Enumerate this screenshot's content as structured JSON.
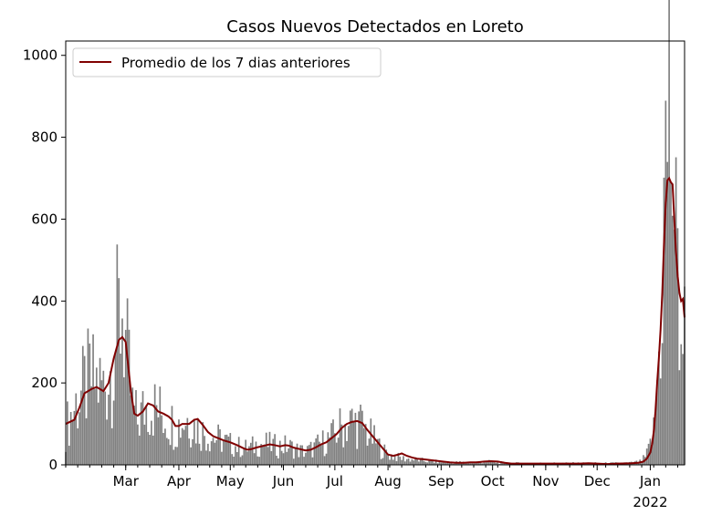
{
  "chart_data": {
    "type": "bar",
    "title": "Casos Nuevos Detectados en Loreto",
    "xlabel": "",
    "ylabel": "",
    "ylim": [
      0,
      1035
    ],
    "yticks": [
      0,
      200,
      400,
      600,
      800,
      1000
    ],
    "x_day_range": [
      0,
      361
    ],
    "xticks": [
      {
        "label": "Mar",
        "sub": "",
        "day": 35
      },
      {
        "label": "Apr",
        "sub": "",
        "day": 66
      },
      {
        "label": "May",
        "sub": "",
        "day": 96
      },
      {
        "label": "Jun",
        "sub": "",
        "day": 127
      },
      {
        "label": "Jul",
        "sub": "",
        "day": 157
      },
      {
        "label": "Aug",
        "sub": "",
        "day": 188
      },
      {
        "label": "Sep",
        "sub": "",
        "day": 219
      },
      {
        "label": "Oct",
        "sub": "",
        "day": 249
      },
      {
        "label": "Nov",
        "sub": "",
        "day": 280
      },
      {
        "label": "Dec",
        "sub": "",
        "day": 310
      },
      {
        "label": "Jan",
        "sub": "2022",
        "day": 341
      }
    ],
    "bar_color": "#808080",
    "line_color": "#800000",
    "legend": {
      "position": "top-left",
      "entries": [
        "Promedio de los 7 dias anteriores"
      ]
    },
    "bar_anchors": [
      [
        0,
        90
      ],
      [
        3,
        120
      ],
      [
        6,
        150
      ],
      [
        10,
        180
      ],
      [
        14,
        210
      ],
      [
        18,
        200
      ],
      [
        22,
        190
      ],
      [
        26,
        230
      ],
      [
        30,
        330
      ],
      [
        33,
        400
      ],
      [
        36,
        250
      ],
      [
        39,
        140
      ],
      [
        42,
        105
      ],
      [
        45,
        130
      ],
      [
        48,
        150
      ],
      [
        52,
        140
      ],
      [
        56,
        125
      ],
      [
        60,
        110
      ],
      [
        64,
        95
      ],
      [
        67,
        100
      ],
      [
        70,
        115
      ],
      [
        73,
        110
      ],
      [
        76,
        95
      ],
      [
        80,
        80
      ],
      [
        84,
        70
      ],
      [
        88,
        65
      ],
      [
        92,
        58
      ],
      [
        96,
        50
      ],
      [
        100,
        45
      ],
      [
        104,
        40
      ],
      [
        108,
        42
      ],
      [
        112,
        50
      ],
      [
        116,
        52
      ],
      [
        120,
        48
      ],
      [
        124,
        45
      ],
      [
        128,
        46
      ],
      [
        132,
        42
      ],
      [
        136,
        35
      ],
      [
        140,
        32
      ],
      [
        144,
        40
      ],
      [
        148,
        50
      ],
      [
        152,
        60
      ],
      [
        156,
        70
      ],
      [
        160,
        90
      ],
      [
        164,
        100
      ],
      [
        168,
        105
      ],
      [
        172,
        100
      ],
      [
        176,
        80
      ],
      [
        180,
        60
      ],
      [
        184,
        40
      ],
      [
        188,
        25
      ],
      [
        192,
        20
      ],
      [
        196,
        16
      ],
      [
        200,
        14
      ],
      [
        205,
        12
      ],
      [
        210,
        10
      ],
      [
        215,
        8
      ],
      [
        220,
        7
      ],
      [
        225,
        6
      ],
      [
        230,
        6
      ],
      [
        235,
        6
      ],
      [
        240,
        7
      ],
      [
        245,
        8
      ],
      [
        250,
        7
      ],
      [
        255,
        5
      ],
      [
        260,
        4
      ],
      [
        270,
        4
      ],
      [
        280,
        4
      ],
      [
        290,
        4
      ],
      [
        300,
        4
      ],
      [
        310,
        4
      ],
      [
        320,
        4
      ],
      [
        330,
        5
      ],
      [
        335,
        8
      ],
      [
        338,
        18
      ],
      [
        340,
        35
      ],
      [
        343,
        80
      ],
      [
        346,
        260
      ],
      [
        348,
        450
      ],
      [
        350,
        720
      ],
      [
        352,
        900
      ],
      [
        354,
        750
      ],
      [
        356,
        500
      ],
      [
        358,
        380
      ],
      [
        360,
        320
      ],
      [
        361,
        300
      ]
    ],
    "line_anchors": [
      [
        0,
        100
      ],
      [
        5,
        110
      ],
      [
        8,
        140
      ],
      [
        11,
        175
      ],
      [
        15,
        185
      ],
      [
        18,
        190
      ],
      [
        22,
        180
      ],
      [
        25,
        200
      ],
      [
        28,
        260
      ],
      [
        31,
        305
      ],
      [
        33,
        312
      ],
      [
        35,
        300
      ],
      [
        38,
        180
      ],
      [
        40,
        125
      ],
      [
        42,
        120
      ],
      [
        45,
        130
      ],
      [
        48,
        150
      ],
      [
        51,
        145
      ],
      [
        54,
        130
      ],
      [
        57,
        125
      ],
      [
        60,
        118
      ],
      [
        62,
        110
      ],
      [
        64,
        95
      ],
      [
        66,
        95
      ],
      [
        68,
        100
      ],
      [
        72,
        100
      ],
      [
        75,
        110
      ],
      [
        77,
        112
      ],
      [
        80,
        97
      ],
      [
        83,
        80
      ],
      [
        86,
        70
      ],
      [
        89,
        65
      ],
      [
        92,
        60
      ],
      [
        96,
        55
      ],
      [
        100,
        48
      ],
      [
        104,
        40
      ],
      [
        106,
        37
      ],
      [
        108,
        38
      ],
      [
        111,
        42
      ],
      [
        114,
        45
      ],
      [
        117,
        48
      ],
      [
        119,
        50
      ],
      [
        122,
        48
      ],
      [
        125,
        45
      ],
      [
        128,
        48
      ],
      [
        130,
        47
      ],
      [
        133,
        42
      ],
      [
        137,
        38
      ],
      [
        140,
        35
      ],
      [
        143,
        37
      ],
      [
        146,
        43
      ],
      [
        149,
        50
      ],
      [
        152,
        55
      ],
      [
        155,
        65
      ],
      [
        158,
        75
      ],
      [
        161,
        90
      ],
      [
        164,
        100
      ],
      [
        167,
        105
      ],
      [
        170,
        107
      ],
      [
        173,
        102
      ],
      [
        176,
        85
      ],
      [
        179,
        70
      ],
      [
        182,
        55
      ],
      [
        185,
        40
      ],
      [
        188,
        25
      ],
      [
        191,
        22
      ],
      [
        194,
        25
      ],
      [
        196,
        28
      ],
      [
        199,
        22
      ],
      [
        202,
        18
      ],
      [
        205,
        15
      ],
      [
        208,
        14
      ],
      [
        212,
        12
      ],
      [
        216,
        10
      ],
      [
        220,
        8
      ],
      [
        224,
        6
      ],
      [
        228,
        5
      ],
      [
        232,
        5
      ],
      [
        236,
        6
      ],
      [
        240,
        6
      ],
      [
        244,
        8
      ],
      [
        248,
        9
      ],
      [
        252,
        8
      ],
      [
        256,
        5
      ],
      [
        260,
        3
      ],
      [
        268,
        3
      ],
      [
        276,
        3
      ],
      [
        284,
        3
      ],
      [
        292,
        3
      ],
      [
        300,
        3
      ],
      [
        305,
        4
      ],
      [
        310,
        3
      ],
      [
        316,
        2
      ],
      [
        322,
        3
      ],
      [
        330,
        4
      ],
      [
        334,
        5
      ],
      [
        337,
        8
      ],
      [
        339,
        15
      ],
      [
        341,
        30
      ],
      [
        342,
        50
      ],
      [
        343,
        80
      ],
      [
        344,
        130
      ],
      [
        345,
        200
      ],
      [
        346,
        260
      ],
      [
        347,
        330
      ],
      [
        348,
        420
      ],
      [
        349,
        540
      ],
      [
        350,
        640
      ],
      [
        351,
        695
      ],
      [
        352,
        700
      ],
      [
        353,
        690
      ],
      [
        354,
        685
      ],
      [
        355,
        600
      ],
      [
        356,
        520
      ],
      [
        357,
        460
      ],
      [
        358,
        420
      ],
      [
        359,
        400
      ],
      [
        360,
        405
      ],
      [
        361,
        360
      ]
    ]
  }
}
